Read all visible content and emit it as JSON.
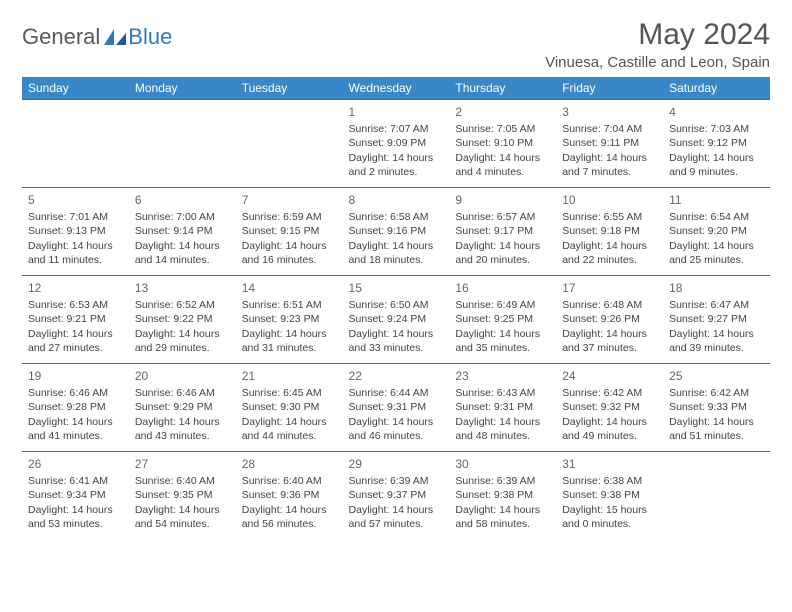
{
  "brand": {
    "general": "General",
    "blue": "Blue"
  },
  "title": "May 2024",
  "location": "Vinuesa, Castille and Leon, Spain",
  "colors": {
    "header_bg": "#3a87c8",
    "header_text": "#ffffff",
    "row_border": "#3a6a9a",
    "logo_gray": "#5a5a5a",
    "logo_blue": "#2f78c2"
  },
  "weekdays": [
    "Sunday",
    "Monday",
    "Tuesday",
    "Wednesday",
    "Thursday",
    "Friday",
    "Saturday"
  ],
  "weeks": [
    [
      {
        "n": "",
        "sr": "",
        "ss": "",
        "dl": ""
      },
      {
        "n": "",
        "sr": "",
        "ss": "",
        "dl": ""
      },
      {
        "n": "",
        "sr": "",
        "ss": "",
        "dl": ""
      },
      {
        "n": "1",
        "sr": "Sunrise: 7:07 AM",
        "ss": "Sunset: 9:09 PM",
        "dl": "Daylight: 14 hours and 2 minutes."
      },
      {
        "n": "2",
        "sr": "Sunrise: 7:05 AM",
        "ss": "Sunset: 9:10 PM",
        "dl": "Daylight: 14 hours and 4 minutes."
      },
      {
        "n": "3",
        "sr": "Sunrise: 7:04 AM",
        "ss": "Sunset: 9:11 PM",
        "dl": "Daylight: 14 hours and 7 minutes."
      },
      {
        "n": "4",
        "sr": "Sunrise: 7:03 AM",
        "ss": "Sunset: 9:12 PM",
        "dl": "Daylight: 14 hours and 9 minutes."
      }
    ],
    [
      {
        "n": "5",
        "sr": "Sunrise: 7:01 AM",
        "ss": "Sunset: 9:13 PM",
        "dl": "Daylight: 14 hours and 11 minutes."
      },
      {
        "n": "6",
        "sr": "Sunrise: 7:00 AM",
        "ss": "Sunset: 9:14 PM",
        "dl": "Daylight: 14 hours and 14 minutes."
      },
      {
        "n": "7",
        "sr": "Sunrise: 6:59 AM",
        "ss": "Sunset: 9:15 PM",
        "dl": "Daylight: 14 hours and 16 minutes."
      },
      {
        "n": "8",
        "sr": "Sunrise: 6:58 AM",
        "ss": "Sunset: 9:16 PM",
        "dl": "Daylight: 14 hours and 18 minutes."
      },
      {
        "n": "9",
        "sr": "Sunrise: 6:57 AM",
        "ss": "Sunset: 9:17 PM",
        "dl": "Daylight: 14 hours and 20 minutes."
      },
      {
        "n": "10",
        "sr": "Sunrise: 6:55 AM",
        "ss": "Sunset: 9:18 PM",
        "dl": "Daylight: 14 hours and 22 minutes."
      },
      {
        "n": "11",
        "sr": "Sunrise: 6:54 AM",
        "ss": "Sunset: 9:20 PM",
        "dl": "Daylight: 14 hours and 25 minutes."
      }
    ],
    [
      {
        "n": "12",
        "sr": "Sunrise: 6:53 AM",
        "ss": "Sunset: 9:21 PM",
        "dl": "Daylight: 14 hours and 27 minutes."
      },
      {
        "n": "13",
        "sr": "Sunrise: 6:52 AM",
        "ss": "Sunset: 9:22 PM",
        "dl": "Daylight: 14 hours and 29 minutes."
      },
      {
        "n": "14",
        "sr": "Sunrise: 6:51 AM",
        "ss": "Sunset: 9:23 PM",
        "dl": "Daylight: 14 hours and 31 minutes."
      },
      {
        "n": "15",
        "sr": "Sunrise: 6:50 AM",
        "ss": "Sunset: 9:24 PM",
        "dl": "Daylight: 14 hours and 33 minutes."
      },
      {
        "n": "16",
        "sr": "Sunrise: 6:49 AM",
        "ss": "Sunset: 9:25 PM",
        "dl": "Daylight: 14 hours and 35 minutes."
      },
      {
        "n": "17",
        "sr": "Sunrise: 6:48 AM",
        "ss": "Sunset: 9:26 PM",
        "dl": "Daylight: 14 hours and 37 minutes."
      },
      {
        "n": "18",
        "sr": "Sunrise: 6:47 AM",
        "ss": "Sunset: 9:27 PM",
        "dl": "Daylight: 14 hours and 39 minutes."
      }
    ],
    [
      {
        "n": "19",
        "sr": "Sunrise: 6:46 AM",
        "ss": "Sunset: 9:28 PM",
        "dl": "Daylight: 14 hours and 41 minutes."
      },
      {
        "n": "20",
        "sr": "Sunrise: 6:46 AM",
        "ss": "Sunset: 9:29 PM",
        "dl": "Daylight: 14 hours and 43 minutes."
      },
      {
        "n": "21",
        "sr": "Sunrise: 6:45 AM",
        "ss": "Sunset: 9:30 PM",
        "dl": "Daylight: 14 hours and 44 minutes."
      },
      {
        "n": "22",
        "sr": "Sunrise: 6:44 AM",
        "ss": "Sunset: 9:31 PM",
        "dl": "Daylight: 14 hours and 46 minutes."
      },
      {
        "n": "23",
        "sr": "Sunrise: 6:43 AM",
        "ss": "Sunset: 9:31 PM",
        "dl": "Daylight: 14 hours and 48 minutes."
      },
      {
        "n": "24",
        "sr": "Sunrise: 6:42 AM",
        "ss": "Sunset: 9:32 PM",
        "dl": "Daylight: 14 hours and 49 minutes."
      },
      {
        "n": "25",
        "sr": "Sunrise: 6:42 AM",
        "ss": "Sunset: 9:33 PM",
        "dl": "Daylight: 14 hours and 51 minutes."
      }
    ],
    [
      {
        "n": "26",
        "sr": "Sunrise: 6:41 AM",
        "ss": "Sunset: 9:34 PM",
        "dl": "Daylight: 14 hours and 53 minutes."
      },
      {
        "n": "27",
        "sr": "Sunrise: 6:40 AM",
        "ss": "Sunset: 9:35 PM",
        "dl": "Daylight: 14 hours and 54 minutes."
      },
      {
        "n": "28",
        "sr": "Sunrise: 6:40 AM",
        "ss": "Sunset: 9:36 PM",
        "dl": "Daylight: 14 hours and 56 minutes."
      },
      {
        "n": "29",
        "sr": "Sunrise: 6:39 AM",
        "ss": "Sunset: 9:37 PM",
        "dl": "Daylight: 14 hours and 57 minutes."
      },
      {
        "n": "30",
        "sr": "Sunrise: 6:39 AM",
        "ss": "Sunset: 9:38 PM",
        "dl": "Daylight: 14 hours and 58 minutes."
      },
      {
        "n": "31",
        "sr": "Sunrise: 6:38 AM",
        "ss": "Sunset: 9:38 PM",
        "dl": "Daylight: 15 hours and 0 minutes."
      },
      {
        "n": "",
        "sr": "",
        "ss": "",
        "dl": ""
      }
    ]
  ]
}
